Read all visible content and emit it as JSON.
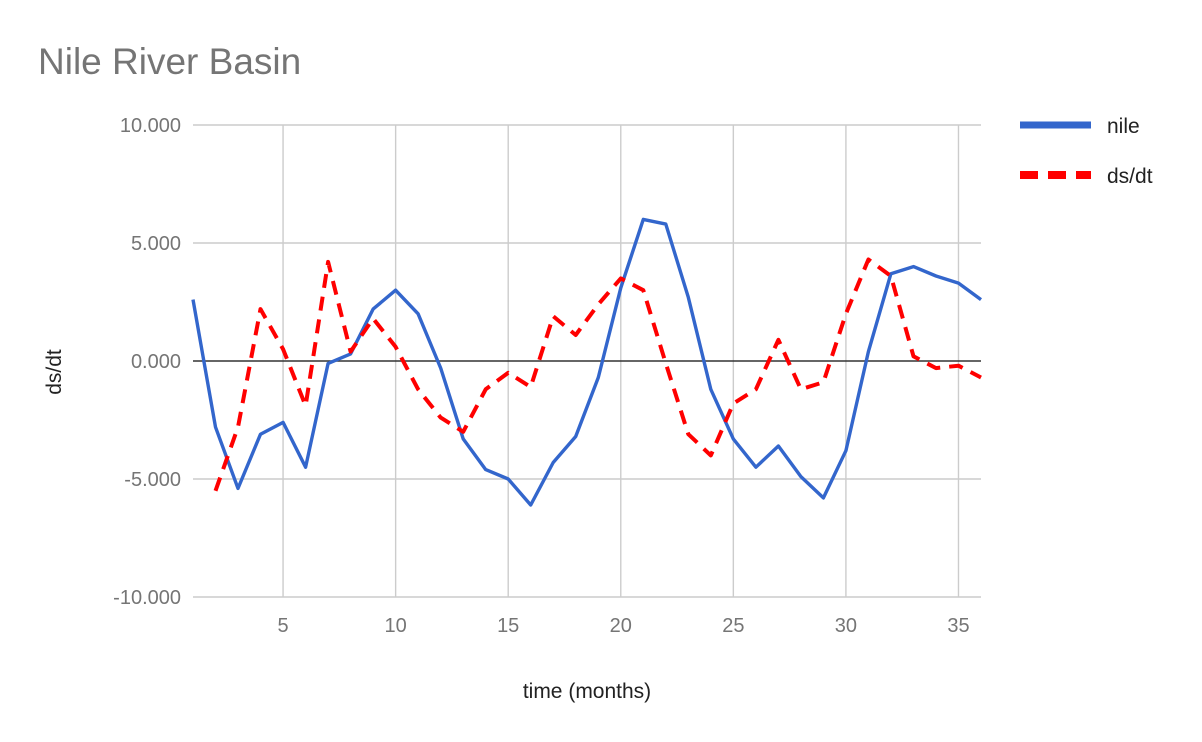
{
  "chart_data": {
    "type": "line",
    "title": "Nile River Basin",
    "xlabel": "time (months)",
    "ylabel": "ds/dt",
    "xlim": [
      1,
      36
    ],
    "ylim": [
      -10,
      10
    ],
    "x_ticks": [
      5,
      10,
      15,
      20,
      25,
      30,
      35
    ],
    "y_ticks": [
      -10,
      -5,
      0,
      5,
      10
    ],
    "y_tick_labels": [
      "-10.000",
      "-5.000",
      "0.000",
      "5.000",
      "10.000"
    ],
    "grid": true,
    "legend_position": "right",
    "series": [
      {
        "name": "nile",
        "color": "#3366cc",
        "style": "solid",
        "x": [
          1,
          2,
          3,
          4,
          5,
          6,
          7,
          8,
          9,
          10,
          11,
          12,
          13,
          14,
          15,
          16,
          17,
          18,
          19,
          20,
          21,
          22,
          23,
          24,
          25,
          26,
          27,
          28,
          29,
          30,
          31,
          32,
          33,
          34,
          35,
          36
        ],
        "values": [
          2.6,
          -2.8,
          -5.4,
          -3.1,
          -2.6,
          -4.5,
          -0.1,
          0.3,
          2.2,
          3.0,
          2.0,
          -0.3,
          -3.3,
          -4.6,
          -5.0,
          -6.1,
          -4.3,
          -3.2,
          -0.7,
          3.1,
          6.0,
          5.8,
          2.7,
          -1.2,
          -3.3,
          -4.5,
          -3.6,
          -4.9,
          -5.8,
          -3.8,
          0.4,
          3.7,
          4.0,
          3.6,
          3.3,
          2.6
        ]
      },
      {
        "name": "ds/dt",
        "color": "#ff0000",
        "style": "dashed",
        "x": [
          2,
          3,
          4,
          5,
          6,
          7,
          8,
          9,
          10,
          11,
          12,
          13,
          14,
          15,
          16,
          17,
          18,
          19,
          20,
          21,
          22,
          23,
          24,
          25,
          26,
          27,
          28,
          29,
          30,
          31,
          32,
          33,
          34,
          35,
          36
        ],
        "values": [
          -5.5,
          -2.8,
          2.2,
          0.5,
          -1.9,
          4.2,
          0.4,
          1.8,
          0.6,
          -1.2,
          -2.4,
          -3.0,
          -1.2,
          -0.5,
          -1.1,
          1.9,
          1.1,
          2.4,
          3.5,
          3.0,
          -0.1,
          -3.1,
          -4.0,
          -1.8,
          -1.2,
          0.9,
          -1.2,
          -0.9,
          2.0,
          4.3,
          3.6,
          0.2,
          -0.3,
          -0.2,
          -0.7
        ]
      }
    ]
  }
}
